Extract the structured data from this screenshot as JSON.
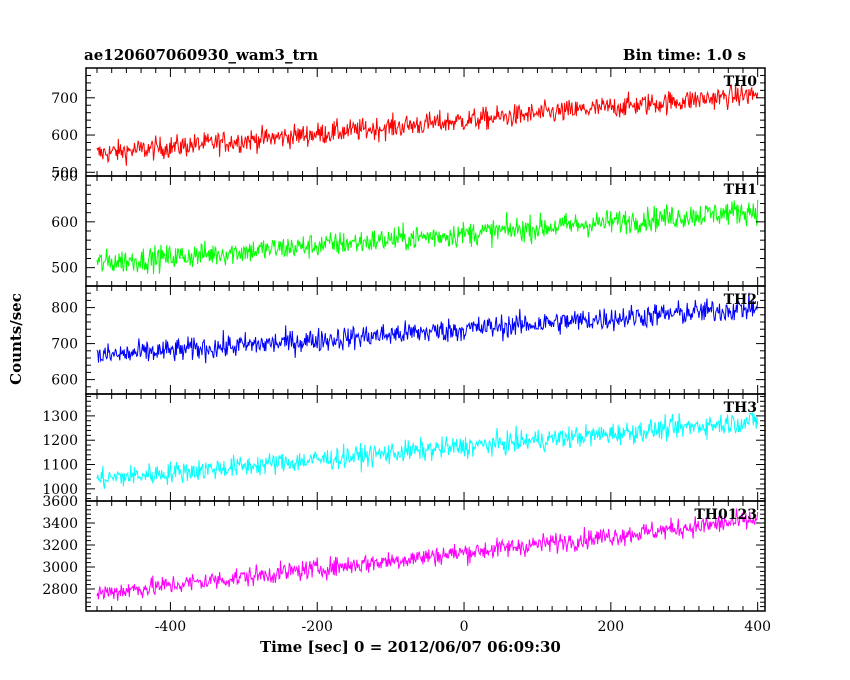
{
  "header": {
    "title": "ae120607060930_wam3_trn",
    "bin_time": "Bin time: 1.0 s"
  },
  "axes": {
    "ylabel": "Counts/sec",
    "xlabel": "Time [sec] 0 = 2012/06/07 06:09:30"
  },
  "chart_data": [
    {
      "type": "line",
      "series": [
        {
          "name": "TH0",
          "color": "#ff0000",
          "start": 550,
          "end": 710,
          "noise": 50
        }
      ],
      "xlim": [
        -515,
        410
      ],
      "ylim": [
        490,
        780
      ],
      "yticks": [
        500,
        600,
        700
      ],
      "xticks": [
        -400,
        -200,
        0,
        200,
        400
      ],
      "grid": false
    },
    {
      "type": "line",
      "series": [
        {
          "name": "TH1",
          "color": "#00ff00",
          "start": 510,
          "end": 625,
          "noise": 45
        }
      ],
      "xlim": [
        -515,
        410
      ],
      "ylim": [
        460,
        700
      ],
      "yticks": [
        500,
        600,
        700
      ],
      "xticks": [
        -400,
        -200,
        0,
        200,
        400
      ],
      "grid": false
    },
    {
      "type": "line",
      "series": [
        {
          "name": "TH2",
          "color": "#0000ff",
          "start": 665,
          "end": 800,
          "noise": 55
        }
      ],
      "xlim": [
        -515,
        410
      ],
      "ylim": [
        560,
        860
      ],
      "yticks": [
        600,
        700,
        800
      ],
      "xticks": [
        -400,
        -200,
        0,
        200,
        400
      ],
      "grid": false
    },
    {
      "type": "line",
      "series": [
        {
          "name": "TH3",
          "color": "#00ffff",
          "start": 1040,
          "end": 1280,
          "noise": 75
        }
      ],
      "xlim": [
        -515,
        410
      ],
      "ylim": [
        950,
        1390
      ],
      "yticks": [
        1000,
        1100,
        1200,
        1300
      ],
      "xticks": [
        -400,
        -200,
        0,
        200,
        400
      ],
      "grid": false
    },
    {
      "type": "line",
      "series": [
        {
          "name": "TH0123",
          "color": "#ff00ff",
          "start": 2760,
          "end": 3430,
          "noise": 150
        }
      ],
      "xlim": [
        -515,
        410
      ],
      "ylim": [
        2600,
        3600
      ],
      "yticks": [
        2800,
        3000,
        3200,
        3400,
        3600
      ],
      "xticks": [
        -400,
        -200,
        0,
        200,
        400
      ],
      "grid": false
    }
  ]
}
